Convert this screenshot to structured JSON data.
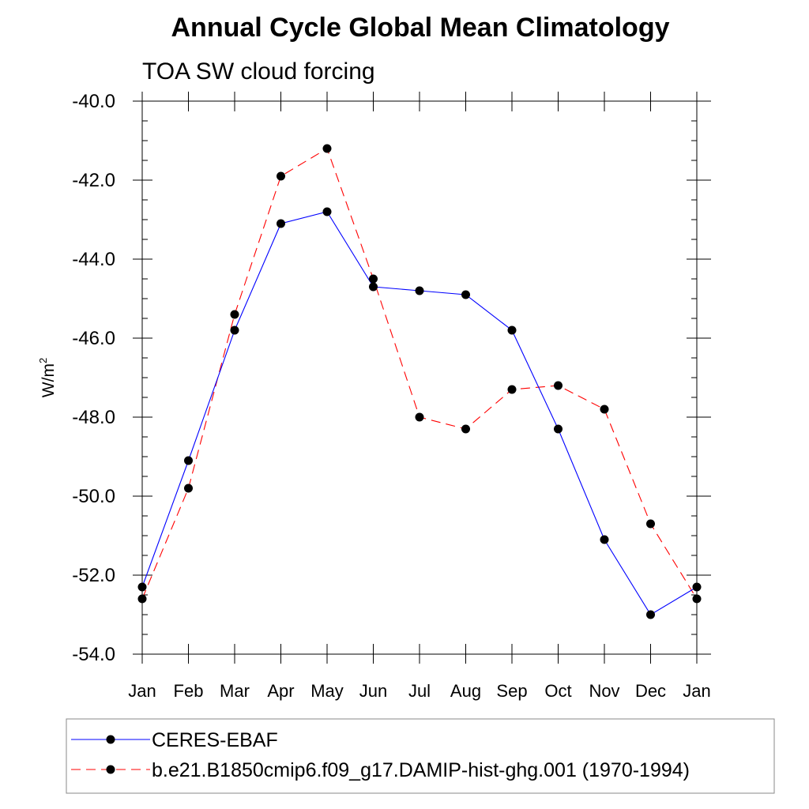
{
  "chart_data": {
    "type": "line",
    "title": "Annual Cycle Global Mean Climatology",
    "subtitle": "TOA SW cloud forcing",
    "ylabel": "W/m",
    "ylabel_superscript": "2",
    "ylim": [
      -54.0,
      -40.0
    ],
    "yticks": [
      "-40.0",
      "-42.0",
      "-44.0",
      "-46.0",
      "-48.0",
      "-50.0",
      "-52.0",
      "-54.0"
    ],
    "categories": [
      "Jan",
      "Feb",
      "Mar",
      "Apr",
      "May",
      "Jun",
      "Jul",
      "Aug",
      "Sep",
      "Oct",
      "Nov",
      "Dec",
      "Jan"
    ],
    "grid": false,
    "legend_position": "bottom",
    "series": [
      {
        "name": "CERES-EBAF",
        "color": "#0000ff",
        "line_style": "solid",
        "marker": "filled-circle",
        "values": [
          -52.3,
          -49.1,
          -45.8,
          -43.1,
          -42.8,
          -44.7,
          -44.8,
          -44.9,
          -45.8,
          -48.3,
          -51.1,
          -53.0,
          -52.3
        ]
      },
      {
        "name": "b.e21.B1850cmip6.f09_g17.DAMIP-hist-ghg.001 (1970-1994)",
        "color": "#ff0000",
        "line_style": "dashed",
        "marker": "filled-circle",
        "values": [
          -52.6,
          -49.8,
          -45.4,
          -41.9,
          -41.2,
          -44.5,
          -48.0,
          -48.3,
          -47.3,
          -47.2,
          -47.8,
          -50.7,
          -52.6
        ]
      }
    ]
  }
}
